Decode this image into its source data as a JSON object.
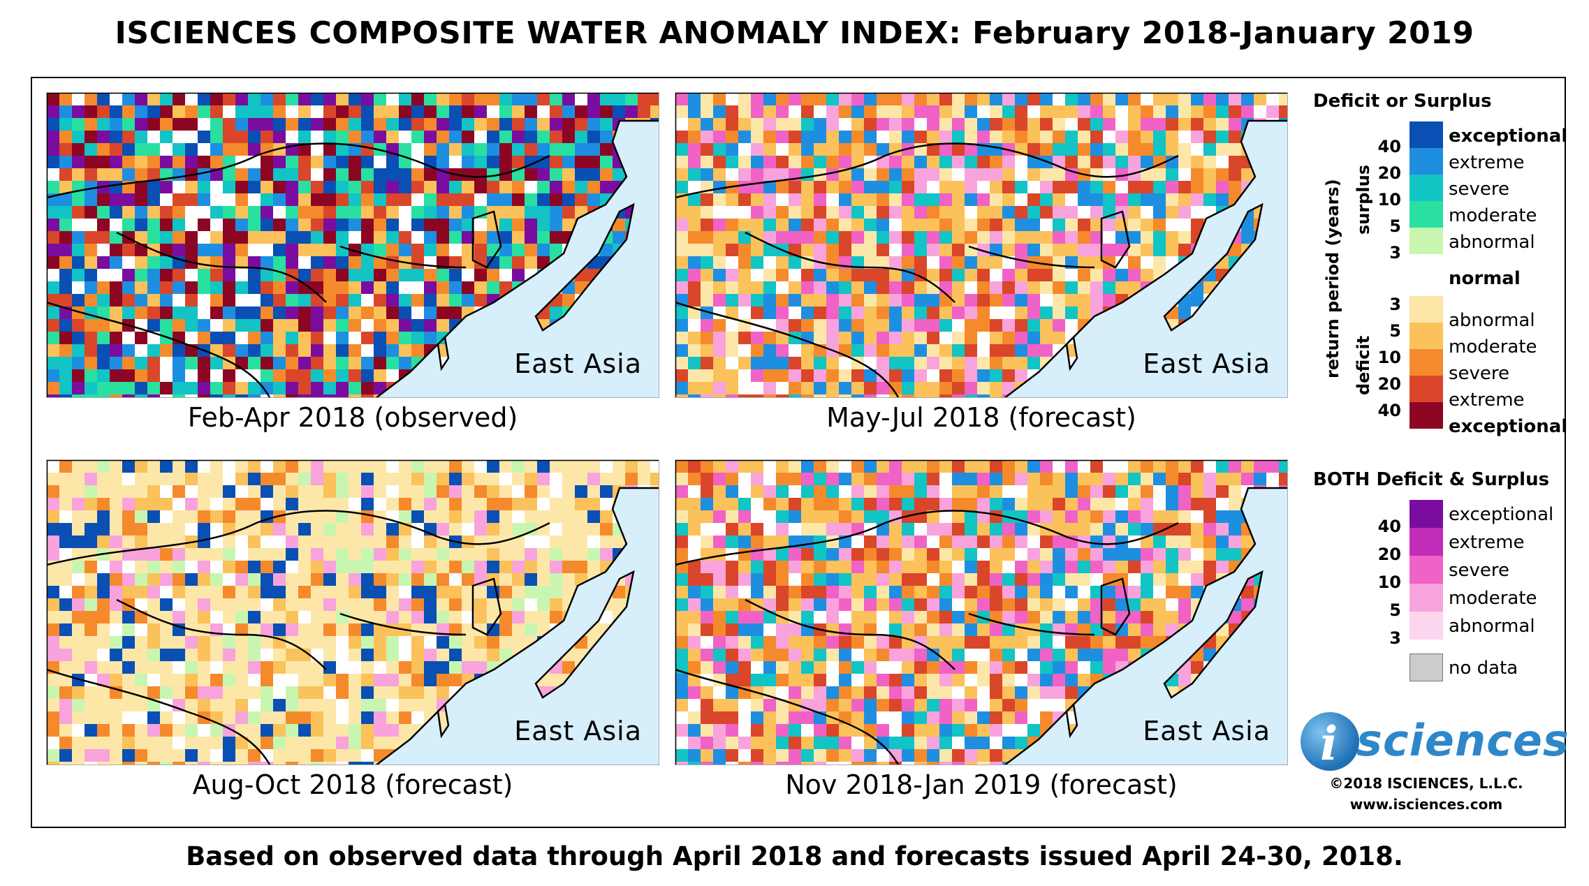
{
  "title": "ISCIENCES COMPOSITE WATER ANOMALY INDEX: February 2018-January 2019",
  "footer": "Based on observed data through April 2018 and forecasts issued April 24-30, 2018.",
  "region_label": "East Asia",
  "panels": [
    {
      "caption": "Feb-Apr 2018 (observed)",
      "dominant": "surplus"
    },
    {
      "caption": "May-Jul 2018 (forecast)",
      "dominant": "deficit-moderate"
    },
    {
      "caption": "Aug-Oct 2018 (forecast)",
      "dominant": "deficit-abnormal"
    },
    {
      "caption": "Nov 2018-Jan 2019 (forecast)",
      "dominant": "deficit-moderate"
    }
  ],
  "legend": {
    "deficit_surplus_title": "Deficit or Surplus",
    "axis_label": "return period (years)",
    "surplus_label": "surplus",
    "deficit_label": "deficit",
    "surplus": [
      {
        "label": "exceptional",
        "color": "#0a4fb4",
        "rp": "40",
        "bold": true
      },
      {
        "label": "extreme",
        "color": "#1e8fe0",
        "rp": "20",
        "bold": false
      },
      {
        "label": "severe",
        "color": "#12c4c4",
        "rp": "10",
        "bold": false
      },
      {
        "label": "moderate",
        "color": "#29e0a0",
        "rp": "5",
        "bold": false
      },
      {
        "label": "abnormal",
        "color": "#c8f6b0",
        "rp": "3",
        "bold": false
      }
    ],
    "normal": {
      "label": "normal",
      "color": "#ffffff"
    },
    "deficit": [
      {
        "label": "abnormal",
        "color": "#fde7a8",
        "rp": "3",
        "bold": false
      },
      {
        "label": "moderate",
        "color": "#fbc15a",
        "rp": "5",
        "bold": false
      },
      {
        "label": "severe",
        "color": "#f58a2c",
        "rp": "10",
        "bold": false
      },
      {
        "label": "extreme",
        "color": "#d9462a",
        "rp": "20",
        "bold": false
      },
      {
        "label": "exceptional",
        "color": "#8c0624",
        "rp": "40",
        "bold": true
      }
    ],
    "both_title": "BOTH Deficit & Surplus",
    "both": [
      {
        "label": "exceptional",
        "color": "#7a0da0",
        "rp": "40"
      },
      {
        "label": "extreme",
        "color": "#c12db8",
        "rp": "20"
      },
      {
        "label": "severe",
        "color": "#f062c6",
        "rp": "10"
      },
      {
        "label": "moderate",
        "color": "#f8a3dc",
        "rp": "5"
      },
      {
        "label": "abnormal",
        "color": "#fcd6ee",
        "rp": "3"
      }
    ],
    "no_data": {
      "label": "no data",
      "color": "#cccccc"
    }
  },
  "logo": {
    "i": "i",
    "text": "sciences"
  },
  "copyright": "©2018 ISCIENCES, L.L.C.",
  "website": "www.isciences.com"
}
